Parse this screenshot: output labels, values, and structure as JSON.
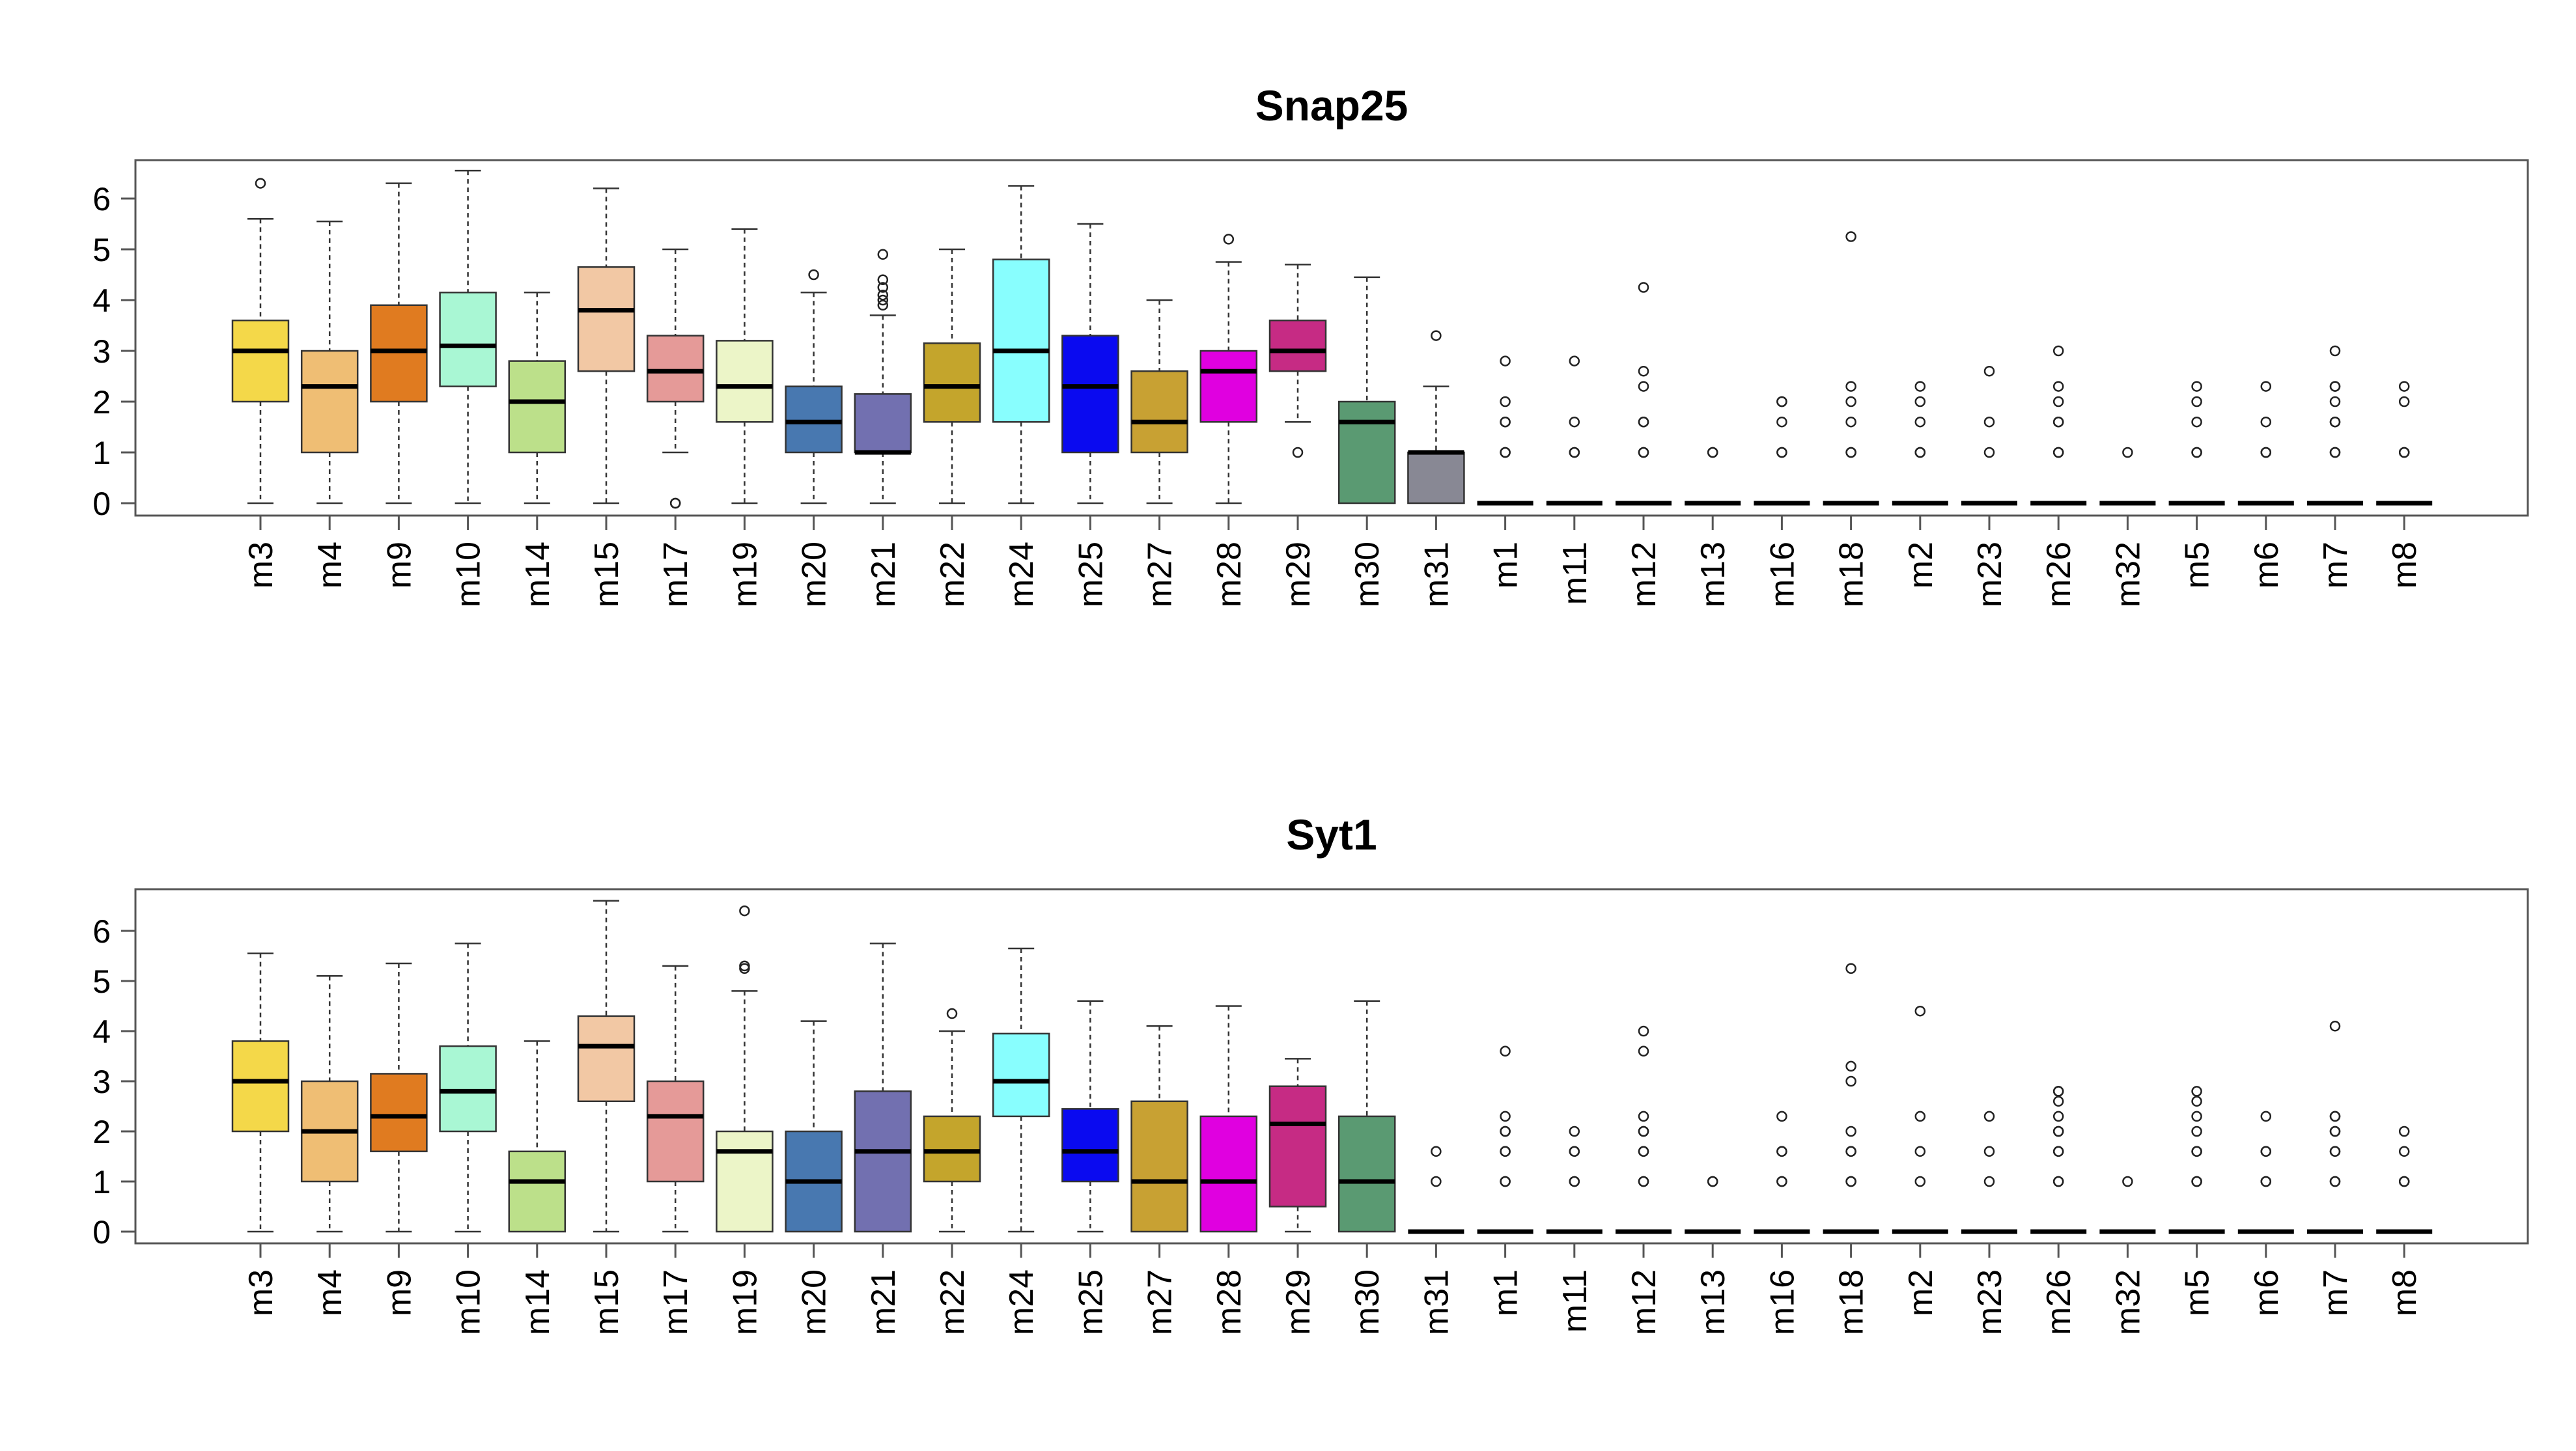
{
  "chart_data": [
    {
      "type": "box",
      "title": "Snap25",
      "xlabel": "",
      "ylabel": "",
      "ylim": [
        0,
        6.6
      ],
      "yticks": [
        0,
        1,
        2,
        3,
        4,
        5,
        6
      ],
      "grid": false,
      "legend": "none",
      "boxes": [
        {
          "label": "m3",
          "color": "#F4D849",
          "min": 0,
          "q1": 2.0,
          "median": 3.0,
          "q3": 3.6,
          "max": 5.6,
          "outliers": [
            6.3
          ]
        },
        {
          "label": "m4",
          "color": "#EFBE74",
          "min": 0,
          "q1": 1.0,
          "median": 2.3,
          "q3": 3.0,
          "max": 5.55,
          "outliers": []
        },
        {
          "label": "m9",
          "color": "#E07B20",
          "min": 0,
          "q1": 2.0,
          "median": 3.0,
          "q3": 3.9,
          "max": 6.3,
          "outliers": []
        },
        {
          "label": "m10",
          "color": "#A9F7D4",
          "min": 0,
          "q1": 2.3,
          "median": 3.1,
          "q3": 4.15,
          "max": 6.55,
          "outliers": []
        },
        {
          "label": "m14",
          "color": "#BCE08A",
          "min": 0,
          "q1": 1.0,
          "median": 2.0,
          "q3": 2.8,
          "max": 4.15,
          "outliers": []
        },
        {
          "label": "m15",
          "color": "#F2C8A4",
          "min": 0,
          "q1": 2.6,
          "median": 3.8,
          "q3": 4.65,
          "max": 6.2,
          "outliers": []
        },
        {
          "label": "m17",
          "color": "#E59A98",
          "min": 1.0,
          "q1": 2.0,
          "median": 2.6,
          "q3": 3.3,
          "max": 5.0,
          "outliers": [
            0,
            0
          ]
        },
        {
          "label": "m19",
          "color": "#ECF5C8",
          "min": 0,
          "q1": 1.6,
          "median": 2.3,
          "q3": 3.2,
          "max": 5.4,
          "outliers": []
        },
        {
          "label": "m20",
          "color": "#4878B0",
          "min": 0,
          "q1": 1.0,
          "median": 1.6,
          "q3": 2.3,
          "max": 4.15,
          "outliers": [
            4.5
          ]
        },
        {
          "label": "m21",
          "color": "#7270B0",
          "min": 0,
          "q1": 1.0,
          "median": 1.0,
          "q3": 2.15,
          "max": 3.7,
          "outliers": [
            3.9,
            4.0,
            4.1,
            4.25,
            4.4,
            4.9
          ]
        },
        {
          "label": "m22",
          "color": "#C4A52C",
          "min": 0,
          "q1": 1.6,
          "median": 2.3,
          "q3": 3.15,
          "max": 5.0,
          "outliers": []
        },
        {
          "label": "m24",
          "color": "#88FEFE",
          "min": 0,
          "q1": 1.6,
          "median": 3.0,
          "q3": 4.8,
          "max": 6.25,
          "outliers": []
        },
        {
          "label": "m25",
          "color": "#0A0AF0",
          "min": 0,
          "q1": 1.0,
          "median": 2.3,
          "q3": 3.3,
          "max": 5.5,
          "outliers": []
        },
        {
          "label": "m27",
          "color": "#C8A133",
          "min": 0,
          "q1": 1.0,
          "median": 1.6,
          "q3": 2.6,
          "max": 4.0,
          "outliers": []
        },
        {
          "label": "m28",
          "color": "#E000E0",
          "min": 0,
          "q1": 1.6,
          "median": 2.6,
          "q3": 3.0,
          "max": 4.75,
          "outliers": [
            5.2
          ]
        },
        {
          "label": "m29",
          "color": "#C62B84",
          "min": 1.6,
          "q1": 2.6,
          "median": 3.0,
          "q3": 3.6,
          "max": 4.7,
          "outliers": [
            1.0
          ]
        },
        {
          "label": "m30",
          "color": "#5A9A72",
          "min": 0,
          "q1": 0,
          "median": 1.6,
          "q3": 2.0,
          "max": 4.45,
          "outliers": []
        },
        {
          "label": "m31",
          "color": "#888894",
          "min": 0,
          "q1": 0,
          "median": 1.0,
          "q3": 1.0,
          "max": 2.3,
          "outliers": [
            3.3
          ]
        },
        {
          "label": "m1",
          "color": "#ffffff",
          "min": 0,
          "q1": 0,
          "median": 0,
          "q3": 0,
          "max": 0,
          "outliers": [
            1.0,
            1.0,
            1.6,
            1.6,
            2.0,
            2.8
          ]
        },
        {
          "label": "m11",
          "color": "#ffffff",
          "min": 0,
          "q1": 0,
          "median": 0,
          "q3": 0,
          "max": 0,
          "outliers": [
            1.0,
            1.0,
            1.6,
            2.8
          ]
        },
        {
          "label": "m12",
          "color": "#ffffff",
          "min": 0,
          "q1": 0,
          "median": 0,
          "q3": 0,
          "max": 0,
          "outliers": [
            1.0,
            1.0,
            1.6,
            1.6,
            2.3,
            2.6,
            4.25
          ]
        },
        {
          "label": "m13",
          "color": "#ffffff",
          "min": 0,
          "q1": 0,
          "median": 0,
          "q3": 0,
          "max": 0,
          "outliers": [
            1.0,
            1.0
          ]
        },
        {
          "label": "m16",
          "color": "#ffffff",
          "min": 0,
          "q1": 0,
          "median": 0,
          "q3": 0,
          "max": 0,
          "outliers": [
            1.0,
            1.0,
            1.6,
            2.0,
            2.0
          ]
        },
        {
          "label": "m18",
          "color": "#ffffff",
          "min": 0,
          "q1": 0,
          "median": 0,
          "q3": 0,
          "max": 0,
          "outliers": [
            1.0,
            1.0,
            1.6,
            2.0,
            2.3,
            5.25
          ]
        },
        {
          "label": "m2",
          "color": "#ffffff",
          "min": 0,
          "q1": 0,
          "median": 0,
          "q3": 0,
          "max": 0,
          "outliers": [
            1.0,
            1.0,
            1.6,
            2.0,
            2.3
          ]
        },
        {
          "label": "m23",
          "color": "#ffffff",
          "min": 0,
          "q1": 0,
          "median": 0,
          "q3": 0,
          "max": 0,
          "outliers": [
            1.0,
            1.6,
            2.6
          ]
        },
        {
          "label": "m26",
          "color": "#ffffff",
          "min": 0,
          "q1": 0,
          "median": 0,
          "q3": 0,
          "max": 0,
          "outliers": [
            1.0,
            1.0,
            1.6,
            1.6,
            2.0,
            2.3,
            3.0
          ]
        },
        {
          "label": "m32",
          "color": "#ffffff",
          "min": 0,
          "q1": 0,
          "median": 0,
          "q3": 0,
          "max": 0,
          "outliers": [
            1.0
          ]
        },
        {
          "label": "m5",
          "color": "#ffffff",
          "min": 0,
          "q1": 0,
          "median": 0,
          "q3": 0,
          "max": 0,
          "outliers": [
            1.0,
            1.0,
            1.6,
            2.0,
            2.3
          ]
        },
        {
          "label": "m6",
          "color": "#ffffff",
          "min": 0,
          "q1": 0,
          "median": 0,
          "q3": 0,
          "max": 0,
          "outliers": [
            1.0,
            1.0,
            1.6,
            2.3
          ]
        },
        {
          "label": "m7",
          "color": "#ffffff",
          "min": 0,
          "q1": 0,
          "median": 0,
          "q3": 0,
          "max": 0,
          "outliers": [
            1.0,
            1.0,
            1.6,
            1.6,
            2.0,
            2.3,
            2.3,
            3.0
          ]
        },
        {
          "label": "m8",
          "color": "#ffffff",
          "min": 0,
          "q1": 0,
          "median": 0,
          "q3": 0,
          "max": 0,
          "outliers": [
            1.0,
            1.0,
            2.0,
            2.3
          ]
        }
      ]
    },
    {
      "type": "box",
      "title": "Syt1",
      "xlabel": "",
      "ylabel": "",
      "ylim": [
        0,
        6.6
      ],
      "yticks": [
        0,
        1,
        2,
        3,
        4,
        5,
        6
      ],
      "grid": false,
      "legend": "none",
      "boxes": [
        {
          "label": "m3",
          "color": "#F4D849",
          "min": 0,
          "q1": 2.0,
          "median": 3.0,
          "q3": 3.8,
          "max": 5.55,
          "outliers": []
        },
        {
          "label": "m4",
          "color": "#EFBE74",
          "min": 0,
          "q1": 1.0,
          "median": 2.0,
          "q3": 3.0,
          "max": 5.1,
          "outliers": []
        },
        {
          "label": "m9",
          "color": "#E07B20",
          "min": 0,
          "q1": 1.6,
          "median": 2.3,
          "q3": 3.15,
          "max": 5.35,
          "outliers": []
        },
        {
          "label": "m10",
          "color": "#A9F7D4",
          "min": 0,
          "q1": 2.0,
          "median": 2.8,
          "q3": 3.7,
          "max": 5.75,
          "outliers": []
        },
        {
          "label": "m14",
          "color": "#BCE08A",
          "min": 0,
          "q1": 0,
          "median": 1.0,
          "q3": 1.6,
          "max": 3.8,
          "outliers": []
        },
        {
          "label": "m15",
          "color": "#F2C8A4",
          "min": 0,
          "q1": 2.6,
          "median": 3.7,
          "q3": 4.3,
          "max": 6.6,
          "outliers": []
        },
        {
          "label": "m17",
          "color": "#E59A98",
          "min": 0,
          "q1": 1.0,
          "median": 2.3,
          "q3": 3.0,
          "max": 5.3,
          "outliers": []
        },
        {
          "label": "m19",
          "color": "#ECF5C8",
          "min": 0,
          "q1": 0,
          "median": 1.6,
          "q3": 2.0,
          "max": 4.8,
          "outliers": [
            5.25,
            5.3,
            6.4
          ]
        },
        {
          "label": "m20",
          "color": "#4878B0",
          "min": 0,
          "q1": 0,
          "median": 1.0,
          "q3": 2.0,
          "max": 4.2,
          "outliers": []
        },
        {
          "label": "m21",
          "color": "#7270B0",
          "min": 0,
          "q1": 0,
          "median": 1.6,
          "q3": 2.8,
          "max": 5.75,
          "outliers": []
        },
        {
          "label": "m22",
          "color": "#C4A52C",
          "min": 0,
          "q1": 1.0,
          "median": 1.6,
          "q3": 2.3,
          "max": 4.0,
          "outliers": [
            4.35
          ]
        },
        {
          "label": "m24",
          "color": "#88FEFE",
          "min": 0,
          "q1": 2.3,
          "median": 3.0,
          "q3": 3.95,
          "max": 5.65,
          "outliers": []
        },
        {
          "label": "m25",
          "color": "#0A0AF0",
          "min": 0,
          "q1": 1.0,
          "median": 1.6,
          "q3": 2.45,
          "max": 4.6,
          "outliers": []
        },
        {
          "label": "m27",
          "color": "#C8A133",
          "min": 0,
          "q1": 0,
          "median": 1.0,
          "q3": 2.6,
          "max": 4.1,
          "outliers": []
        },
        {
          "label": "m28",
          "color": "#E000E0",
          "min": 0,
          "q1": 0,
          "median": 1.0,
          "q3": 2.3,
          "max": 4.5,
          "outliers": []
        },
        {
          "label": "m29",
          "color": "#C62B84",
          "min": 0,
          "q1": 0.5,
          "median": 2.15,
          "q3": 2.9,
          "max": 3.45,
          "outliers": []
        },
        {
          "label": "m30",
          "color": "#5A9A72",
          "min": 0,
          "q1": 0,
          "median": 1.0,
          "q3": 2.3,
          "max": 4.6,
          "outliers": []
        },
        {
          "label": "m31",
          "color": "#ffffff",
          "min": 0,
          "q1": 0,
          "median": 0,
          "q3": 0,
          "max": 0,
          "outliers": [
            1.0,
            1.6
          ]
        },
        {
          "label": "m1",
          "color": "#ffffff",
          "min": 0,
          "q1": 0,
          "median": 0,
          "q3": 0,
          "max": 0,
          "outliers": [
            1.0,
            1.0,
            1.6,
            1.6,
            2.0,
            2.0,
            2.3,
            3.6
          ]
        },
        {
          "label": "m11",
          "color": "#ffffff",
          "min": 0,
          "q1": 0,
          "median": 0,
          "q3": 0,
          "max": 0,
          "outliers": [
            1.0,
            1.0,
            1.6,
            1.6,
            2.0
          ]
        },
        {
          "label": "m12",
          "color": "#ffffff",
          "min": 0,
          "q1": 0,
          "median": 0,
          "q3": 0,
          "max": 0,
          "outliers": [
            1.0,
            1.0,
            1.6,
            1.6,
            2.0,
            2.0,
            2.3,
            3.6,
            4.0
          ]
        },
        {
          "label": "m13",
          "color": "#ffffff",
          "min": 0,
          "q1": 0,
          "median": 0,
          "q3": 0,
          "max": 0,
          "outliers": [
            1.0,
            1.0
          ]
        },
        {
          "label": "m16",
          "color": "#ffffff",
          "min": 0,
          "q1": 0,
          "median": 0,
          "q3": 0,
          "max": 0,
          "outliers": [
            1.0,
            1.0,
            1.6,
            1.6,
            2.3
          ]
        },
        {
          "label": "m18",
          "color": "#ffffff",
          "min": 0,
          "q1": 0,
          "median": 0,
          "q3": 0,
          "max": 0,
          "outliers": [
            1.0,
            1.0,
            1.6,
            1.6,
            2.0,
            3.0,
            3.3,
            5.25
          ]
        },
        {
          "label": "m2",
          "color": "#ffffff",
          "min": 0,
          "q1": 0,
          "median": 0,
          "q3": 0,
          "max": 0,
          "outliers": [
            1.0,
            1.6,
            2.3,
            4.4
          ]
        },
        {
          "label": "m23",
          "color": "#ffffff",
          "min": 0,
          "q1": 0,
          "median": 0,
          "q3": 0,
          "max": 0,
          "outliers": [
            1.0,
            1.6,
            2.3
          ]
        },
        {
          "label": "m26",
          "color": "#ffffff",
          "min": 0,
          "q1": 0,
          "median": 0,
          "q3": 0,
          "max": 0,
          "outliers": [
            1.0,
            1.0,
            1.6,
            1.6,
            2.0,
            2.0,
            2.3,
            2.6,
            2.8,
            2.8
          ]
        },
        {
          "label": "m32",
          "color": "#ffffff",
          "min": 0,
          "q1": 0,
          "median": 0,
          "q3": 0,
          "max": 0,
          "outliers": [
            1.0
          ]
        },
        {
          "label": "m5",
          "color": "#ffffff",
          "min": 0,
          "q1": 0,
          "median": 0,
          "q3": 0,
          "max": 0,
          "outliers": [
            1.0,
            1.0,
            1.6,
            1.6,
            2.0,
            2.3,
            2.6,
            2.8
          ]
        },
        {
          "label": "m6",
          "color": "#ffffff",
          "min": 0,
          "q1": 0,
          "median": 0,
          "q3": 0,
          "max": 0,
          "outliers": [
            1.0,
            1.0,
            1.6,
            1.6,
            2.3
          ]
        },
        {
          "label": "m7",
          "color": "#ffffff",
          "min": 0,
          "q1": 0,
          "median": 0,
          "q3": 0,
          "max": 0,
          "outliers": [
            1.0,
            1.0,
            1.6,
            1.6,
            2.0,
            2.0,
            2.3,
            2.3,
            4.1
          ]
        },
        {
          "label": "m8",
          "color": "#ffffff",
          "min": 0,
          "q1": 0,
          "median": 0,
          "q3": 0,
          "max": 0,
          "outliers": [
            1.0,
            1.0,
            1.6,
            2.0
          ]
        }
      ]
    }
  ]
}
